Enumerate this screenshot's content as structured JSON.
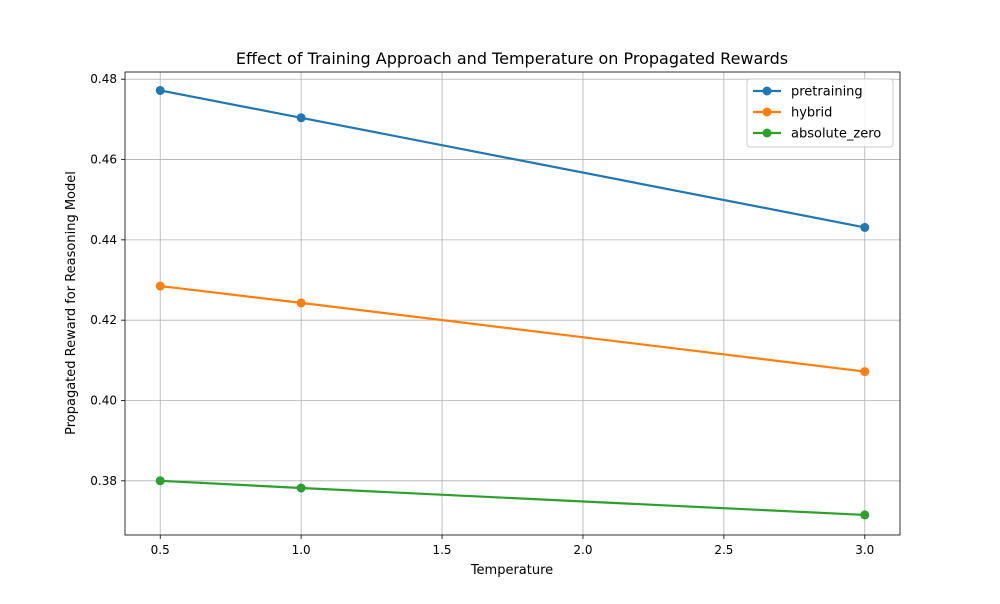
{
  "chart_data": {
    "type": "line",
    "title": "Effect of Training Approach and Temperature on Propagated Rewards",
    "xlabel": "Temperature",
    "ylabel": "Propagated Reward for Reasoning Model",
    "xlim": [
      0.375,
      3.125
    ],
    "ylim": [
      0.3665,
      0.4818
    ],
    "xticks": [
      0.5,
      1.0,
      1.5,
      2.0,
      2.5,
      3.0
    ],
    "xtick_labels": [
      "0.5",
      "1.0",
      "1.5",
      "2.0",
      "2.5",
      "3.0"
    ],
    "yticks": [
      0.38,
      0.4,
      0.42,
      0.44,
      0.46,
      0.48
    ],
    "ytick_labels": [
      "0.38",
      "0.40",
      "0.42",
      "0.44",
      "0.46",
      "0.48"
    ],
    "grid": true,
    "legend_position": "top-right",
    "series": [
      {
        "name": "pretraining",
        "color": "#1f77b4",
        "x": [
          0.5,
          1.0,
          3.0
        ],
        "values": [
          0.4772,
          0.4704,
          0.4431
        ]
      },
      {
        "name": "hybrid",
        "color": "#ff7f0e",
        "x": [
          0.5,
          1.0,
          3.0
        ],
        "values": [
          0.4285,
          0.4243,
          0.4072
        ]
      },
      {
        "name": "absolute_zero",
        "color": "#2ca02c",
        "x": [
          0.5,
          1.0,
          3.0
        ],
        "values": [
          0.38,
          0.3782,
          0.3715
        ]
      }
    ]
  }
}
